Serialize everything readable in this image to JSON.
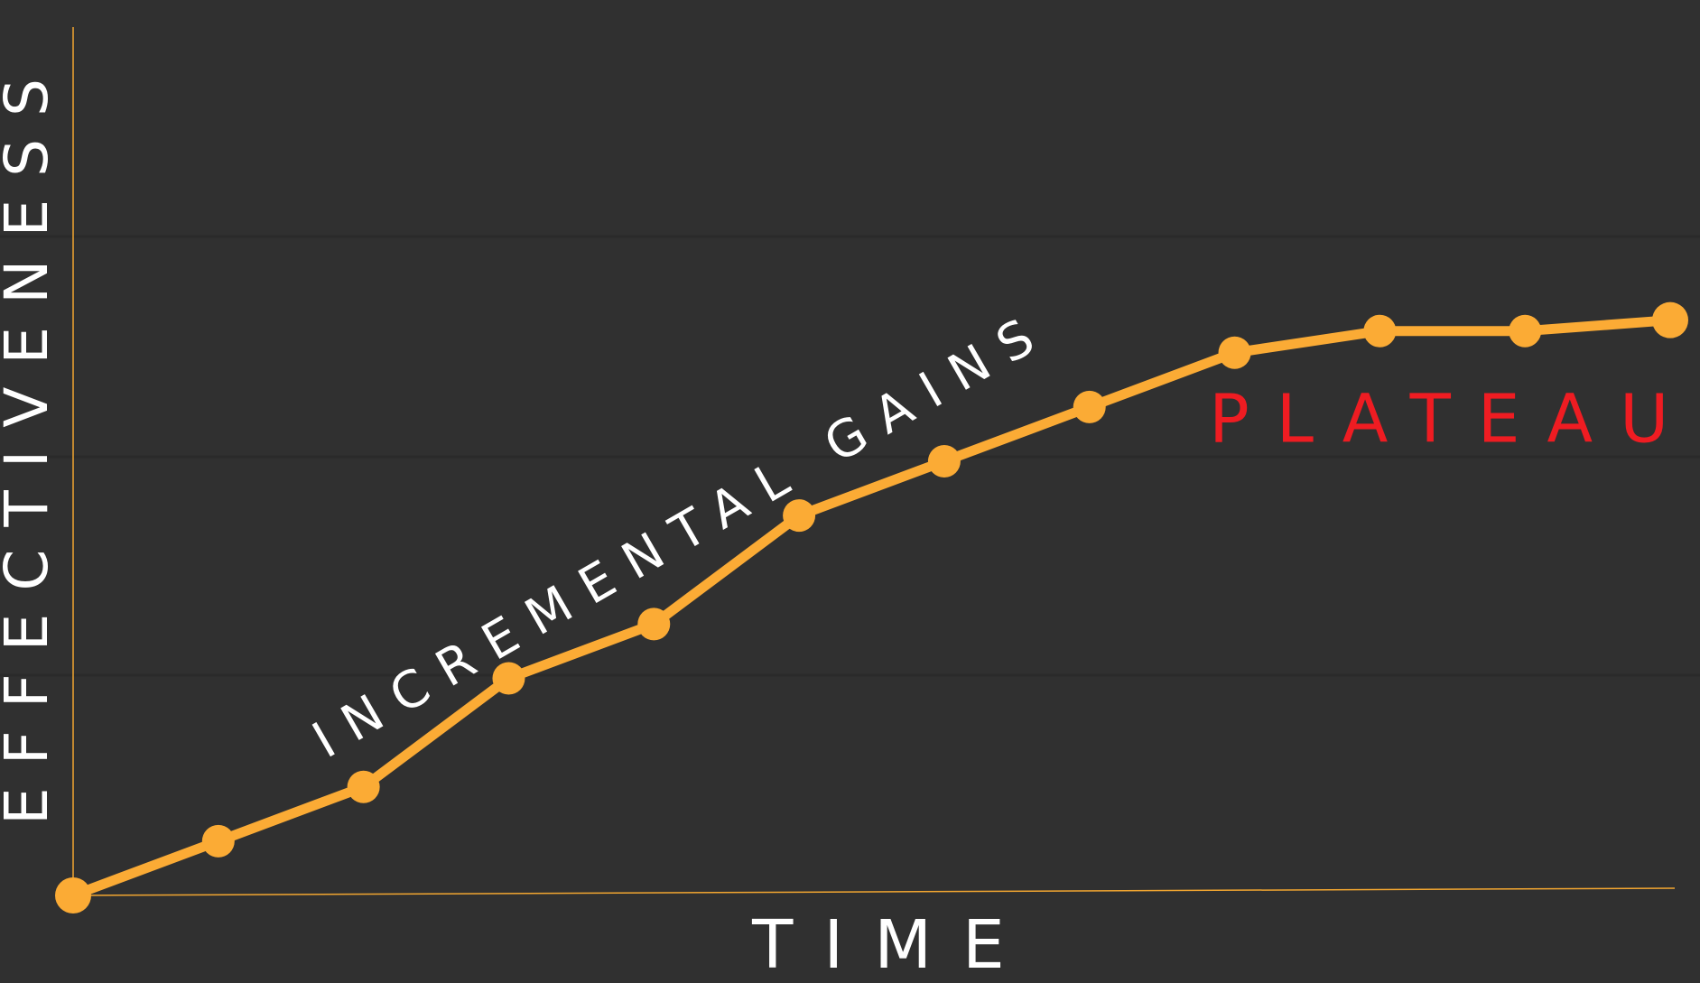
{
  "chart_data": {
    "type": "line",
    "title": "",
    "xlabel": "TIME",
    "ylabel": "EFFECTIVENESS",
    "x": [
      0,
      1,
      2,
      3,
      4,
      5,
      6,
      7,
      8,
      9,
      10,
      11
    ],
    "series": [
      {
        "name": "Effectiveness",
        "color": "#fbab35",
        "values": [
          0,
          1,
          2,
          4,
          5,
          7,
          8,
          9,
          10,
          10.4,
          10.4,
          10.6
        ]
      }
    ],
    "xlim": [
      0,
      11
    ],
    "ylim": [
      0,
      16
    ],
    "grid": true,
    "annotations": [
      {
        "text": "INCREMENTAL GAINS",
        "color": "#ffffff",
        "anchor_x": 4.2,
        "anchor_y": 6.6,
        "angle": -30
      },
      {
        "text": "PLATEAU",
        "color": "#ef1c22",
        "anchor_x": 9.5,
        "anchor_y": 8.7,
        "angle": 0
      }
    ],
    "colors": {
      "background": "#303030",
      "axis": "#f2a630",
      "line": "#fbab35",
      "label": "#ffffff",
      "plateau": "#ef1c22"
    }
  }
}
